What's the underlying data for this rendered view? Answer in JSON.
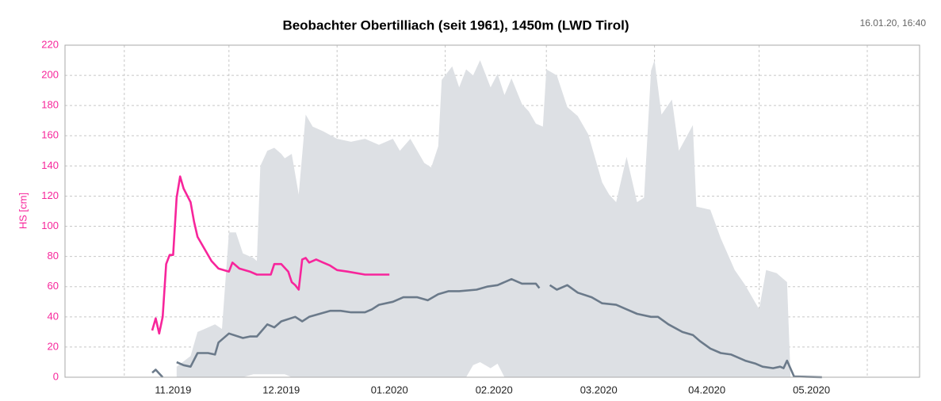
{
  "chart_data": {
    "type": "line",
    "title": "Beobachter Obertilliach (seit 1961), 1450m (LWD Tirol)",
    "timestamp": "16.01.20, 16:40",
    "y_label": "HS [cm]",
    "y_label_color": "#f7259b",
    "grid": true,
    "ylim": [
      0,
      220
    ],
    "yticks": [
      0,
      20,
      40,
      60,
      80,
      100,
      120,
      140,
      160,
      180,
      200,
      220
    ],
    "xlim": [
      14,
      259
    ],
    "xticks": [
      {
        "value": 45,
        "label": "11.2019"
      },
      {
        "value": 76,
        "label": "12.2019"
      },
      {
        "value": 107,
        "label": "01.2020"
      },
      {
        "value": 137,
        "label": "02.2020"
      },
      {
        "value": 167,
        "label": "03.2020"
      },
      {
        "value": 198,
        "label": "04.2020"
      },
      {
        "value": 228,
        "label": "05.2020"
      }
    ],
    "xgrid": [
      31,
      61,
      92,
      123,
      152,
      183,
      213,
      244
    ],
    "area": {
      "color": "#dde0e4",
      "x": [
        46,
        50,
        52,
        54,
        57,
        59,
        61,
        63,
        65,
        68,
        69,
        70,
        72,
        74,
        76,
        77,
        79,
        81,
        83,
        85,
        88,
        92,
        96,
        100,
        104,
        108,
        110,
        113,
        117,
        119,
        121,
        122,
        125,
        127,
        129,
        131,
        133,
        136,
        138,
        140,
        142,
        145,
        147,
        149,
        151,
        152,
        155,
        158,
        161,
        164,
        168,
        170,
        172,
        175,
        178,
        180,
        182,
        183,
        185,
        188,
        190,
        194,
        195,
        199,
        202,
        206,
        209,
        213,
        215,
        218,
        221,
        222
      ],
      "upper": [
        7,
        14,
        30,
        32,
        35,
        32,
        96,
        96,
        82,
        79,
        77,
        140,
        150,
        152,
        148,
        145,
        148,
        121,
        174,
        166,
        163,
        158,
        156,
        158,
        154,
        158,
        150,
        158,
        142,
        139,
        153,
        197,
        206,
        192,
        204,
        200,
        210,
        192,
        201,
        187,
        198,
        181,
        176,
        168,
        166,
        204,
        200,
        179,
        173,
        161,
        129,
        121,
        116,
        146,
        116,
        119,
        203,
        210,
        174,
        184,
        150,
        167,
        113,
        111,
        92,
        71,
        61,
        45,
        71,
        69,
        63,
        1
      ],
      "lower": [
        0,
        0,
        0,
        0,
        0,
        0,
        0,
        0,
        0,
        2,
        2,
        2,
        2,
        2,
        2,
        2,
        0,
        0,
        0,
        0,
        0,
        0,
        0,
        0,
        0,
        0,
        0,
        0,
        0,
        0,
        0,
        0,
        0,
        0,
        0,
        8,
        10,
        6,
        9,
        0,
        0,
        0,
        0,
        0,
        0,
        0,
        0,
        0,
        0,
        0,
        0,
        0,
        0,
        0,
        0,
        0,
        0,
        0,
        0,
        0,
        0,
        0,
        0,
        0,
        0,
        0,
        0,
        0,
        0,
        0,
        0,
        0
      ]
    },
    "series": [
      {
        "color": "#6b7a8a",
        "x": [
          39,
          40,
          42,
          44,
          46,
          48,
          50,
          52,
          55,
          57,
          58,
          61,
          65,
          67,
          69,
          72,
          74,
          76,
          80,
          82,
          84,
          87,
          90,
          93,
          96,
          100,
          102,
          104,
          108,
          111,
          115,
          118,
          121,
          124,
          127,
          132,
          135,
          138,
          142,
          145,
          149,
          150,
          151,
          153,
          155,
          158,
          161,
          165,
          168,
          172,
          175,
          178,
          182,
          184,
          187,
          191,
          194,
          196,
          199,
          202,
          205,
          209,
          212,
          214,
          217,
          219,
          220,
          221,
          223,
          231
        ],
        "values": [
          3,
          5,
          0,
          null,
          10,
          8,
          7,
          16,
          16,
          15,
          23,
          29,
          26,
          27,
          27,
          35,
          33,
          37,
          40,
          37,
          40,
          42,
          44,
          44,
          43,
          43,
          45,
          48,
          50,
          53,
          53,
          51,
          55,
          57,
          57,
          58,
          60,
          61,
          65,
          62,
          62,
          59,
          null,
          61,
          58,
          61,
          56,
          53,
          49,
          48,
          45,
          42,
          40,
          40,
          35,
          30,
          28,
          24,
          19,
          16,
          15,
          11,
          9,
          7,
          6,
          7,
          6,
          11,
          0.5,
          0
        ]
      },
      {
        "color": "#f7259b",
        "x": [
          39,
          40,
          41,
          42,
          43,
          44,
          45,
          46,
          47,
          48,
          50,
          51,
          52,
          54,
          56,
          58,
          61,
          62,
          64,
          67,
          69,
          73,
          74,
          76,
          78,
          79,
          80,
          81,
          82,
          83,
          84,
          86,
          88,
          90,
          92,
          95,
          100,
          107
        ],
        "values": [
          31,
          39,
          29,
          40,
          75,
          81,
          81,
          119,
          133,
          125,
          116,
          103,
          93,
          85,
          77,
          72,
          70,
          76,
          72,
          70,
          68,
          68,
          75,
          75,
          70,
          63,
          61,
          58,
          78,
          79,
          76,
          78,
          76,
          74,
          71,
          70,
          68,
          68
        ]
      }
    ]
  }
}
